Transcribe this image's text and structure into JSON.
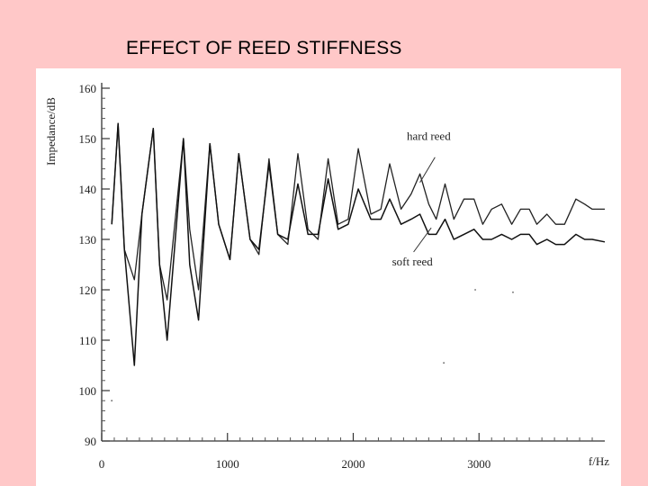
{
  "slide": {
    "title": "EFFECT OF REED STIFFNESS"
  },
  "chart_data": {
    "type": "line",
    "title": "",
    "xlabel": "f/Hz",
    "ylabel": "Impedance/dB",
    "xlim": [
      0,
      4000
    ],
    "ylim": [
      90,
      160
    ],
    "x_ticks": [
      0,
      1000,
      2000,
      3000
    ],
    "y_ticks": [
      90,
      100,
      110,
      120,
      130,
      140,
      150,
      160
    ],
    "grid": false,
    "series": [
      {
        "name": "hard reed",
        "x": [
          80,
          130,
          180,
          260,
          320,
          410,
          460,
          520,
          650,
          700,
          770,
          860,
          930,
          1020,
          1090,
          1180,
          1250,
          1330,
          1400,
          1480,
          1560,
          1640,
          1720,
          1800,
          1880,
          1960,
          2040,
          2140,
          2220,
          2290,
          2380,
          2460,
          2530,
          2600,
          2660,
          2730,
          2800,
          2880,
          2960,
          3030,
          3100,
          3180,
          3260,
          3330,
          3400,
          3460,
          3540,
          3610,
          3680,
          3770,
          3840,
          3900,
          4000
        ],
        "values": [
          133,
          153,
          128,
          122,
          135,
          152,
          125,
          118,
          150,
          132,
          120,
          149,
          133,
          126,
          147,
          130,
          127,
          146,
          131,
          129,
          147,
          132,
          130,
          146,
          133,
          134,
          148,
          135,
          136,
          145,
          136,
          139,
          143,
          137,
          134,
          141,
          134,
          138,
          138,
          133,
          136,
          137,
          133,
          136,
          136,
          133,
          135,
          133,
          133,
          138,
          137,
          136,
          136
        ]
      },
      {
        "name": "soft reed",
        "x": [
          80,
          130,
          180,
          260,
          320,
          410,
          460,
          520,
          650,
          700,
          770,
          860,
          930,
          1020,
          1090,
          1180,
          1250,
          1330,
          1400,
          1480,
          1560,
          1640,
          1720,
          1800,
          1880,
          1960,
          2040,
          2140,
          2220,
          2290,
          2380,
          2460,
          2530,
          2600,
          2660,
          2730,
          2800,
          2880,
          2960,
          3030,
          3100,
          3180,
          3260,
          3330,
          3400,
          3460,
          3540,
          3610,
          3680,
          3770,
          3840,
          3900,
          4000
        ],
        "values": [
          133,
          153,
          128,
          105,
          135,
          152,
          125,
          110,
          150,
          125,
          114,
          149,
          133,
          126,
          147,
          130,
          128,
          145,
          131,
          130,
          141,
          131,
          131,
          142,
          132,
          133,
          140,
          134,
          134,
          138,
          133,
          134,
          135,
          131,
          131,
          134,
          130,
          131,
          132,
          130,
          130,
          131,
          130,
          131,
          131,
          129,
          130,
          129,
          129,
          131,
          130,
          130,
          129.5
        ]
      }
    ],
    "annotations": [
      "hard reed",
      "soft reed"
    ]
  }
}
